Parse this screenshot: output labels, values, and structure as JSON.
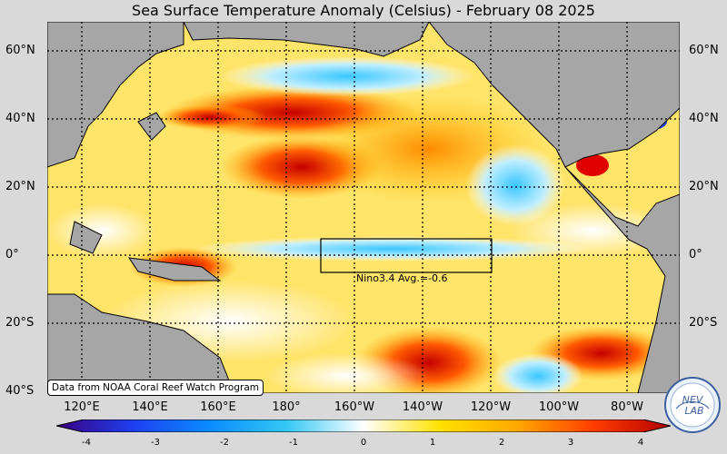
{
  "title": "Sea Surface Temperature Anomaly (Celsius) - February 08 2025",
  "lat_labels": [
    "60°N",
    "40°N",
    "20°N",
    "0°",
    "20°S",
    "40°S"
  ],
  "lon_labels": [
    "120°E",
    "140°E",
    "160°E",
    "180°",
    "160°W",
    "140°W",
    "120°W",
    "100°W",
    "80°W"
  ],
  "colorbar": {
    "ticks": [
      "-4",
      "-3",
      "-2",
      "-1",
      "0",
      "1",
      "2",
      "3",
      "4"
    ],
    "colors": [
      "#3a007f",
      "#1e3ff0",
      "#0a8cff",
      "#35c8f5",
      "#ffffff",
      "#ffe100",
      "#ffa800",
      "#ff3c00",
      "#b30000"
    ]
  },
  "nino_label": "Nino3.4 Avg.=-0.6",
  "credit": "Data from NOAA Coral Reef Watch Program",
  "logo_text": "NEV LAB",
  "colors": {
    "land": "#a6a6a6",
    "ocean_base": "#ffe46a",
    "background": "#d9d9d9"
  }
}
